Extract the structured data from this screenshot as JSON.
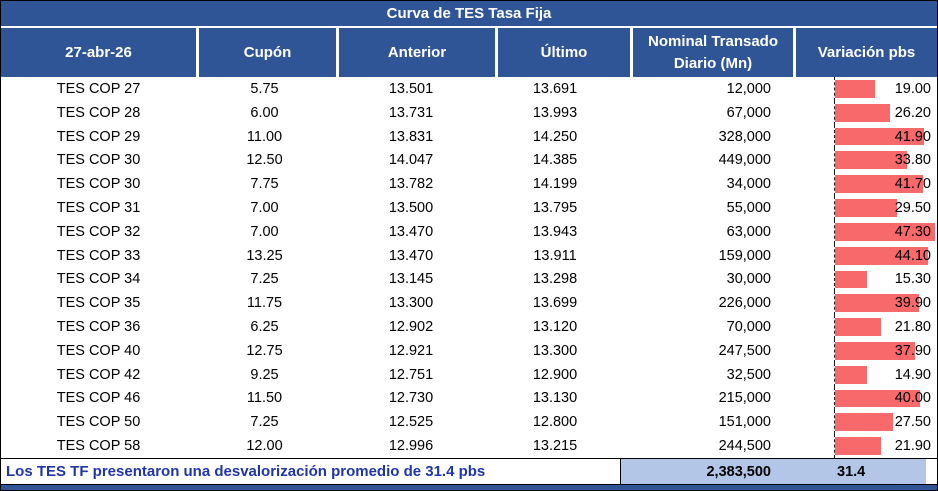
{
  "title": "Curva de TES Tasa Fija",
  "columns": {
    "date": "27-abr-26",
    "cupon": "Cupón",
    "anterior": "Anterior",
    "ultimo": "Último",
    "nominal_line1": "Nominal Transado",
    "nominal_line2": "Diario (Mn)",
    "variacion": "Variación pbs"
  },
  "chart_data": {
    "type": "table",
    "title": "Curva de TES Tasa Fija",
    "bar_column": "variacion",
    "bar_axis_max": 47.3,
    "rows": [
      {
        "name": "TES COP 27",
        "cupon": "5.75",
        "anterior": "13.501",
        "ultimo": "13.691",
        "nominal": "12,000",
        "variacion": "19.00"
      },
      {
        "name": "TES COP 28",
        "cupon": "6.00",
        "anterior": "13.731",
        "ultimo": "13.993",
        "nominal": "67,000",
        "variacion": "26.20"
      },
      {
        "name": "TES COP 29",
        "cupon": "11.00",
        "anterior": "13.831",
        "ultimo": "14.250",
        "nominal": "328,000",
        "variacion": "41.90"
      },
      {
        "name": "TES COP 30",
        "cupon": "12.50",
        "anterior": "14.047",
        "ultimo": "14.385",
        "nominal": "449,000",
        "variacion": "33.80"
      },
      {
        "name": "TES COP 30",
        "cupon": "7.75",
        "anterior": "13.782",
        "ultimo": "14.199",
        "nominal": "34,000",
        "variacion": "41.70"
      },
      {
        "name": "TES COP 31",
        "cupon": "7.00",
        "anterior": "13.500",
        "ultimo": "13.795",
        "nominal": "55,000",
        "variacion": "29.50"
      },
      {
        "name": "TES COP 32",
        "cupon": "7.00",
        "anterior": "13.470",
        "ultimo": "13.943",
        "nominal": "63,000",
        "variacion": "47.30"
      },
      {
        "name": "TES COP 33",
        "cupon": "13.25",
        "anterior": "13.470",
        "ultimo": "13.911",
        "nominal": "159,000",
        "variacion": "44.10"
      },
      {
        "name": "TES COP 34",
        "cupon": "7.25",
        "anterior": "13.145",
        "ultimo": "13.298",
        "nominal": "30,000",
        "variacion": "15.30"
      },
      {
        "name": "TES COP 35",
        "cupon": "11.75",
        "anterior": "13.300",
        "ultimo": "13.699",
        "nominal": "226,000",
        "variacion": "39.90"
      },
      {
        "name": "TES COP 36",
        "cupon": "6.25",
        "anterior": "12.902",
        "ultimo": "13.120",
        "nominal": "70,000",
        "variacion": "21.80"
      },
      {
        "name": "TES COP 40",
        "cupon": "12.75",
        "anterior": "12.921",
        "ultimo": "13.300",
        "nominal": "247,500",
        "variacion": "37.90"
      },
      {
        "name": "TES COP 42",
        "cupon": "9.25",
        "anterior": "12.751",
        "ultimo": "12.900",
        "nominal": "32,500",
        "variacion": "14.90"
      },
      {
        "name": "TES COP 46",
        "cupon": "11.50",
        "anterior": "12.730",
        "ultimo": "13.130",
        "nominal": "215,000",
        "variacion": "40.00"
      },
      {
        "name": "TES COP 50",
        "cupon": "7.25",
        "anterior": "12.525",
        "ultimo": "12.800",
        "nominal": "151,000",
        "variacion": "27.50"
      },
      {
        "name": "TES COP 58",
        "cupon": "12.00",
        "anterior": "12.996",
        "ultimo": "13.215",
        "nominal": "244,500",
        "variacion": "21.90"
      }
    ]
  },
  "footer": {
    "note": "Los TES TF presentaron una desvalorización promedio de 31.4 pbs",
    "nominal_total": "2,383,500",
    "variacion_avg": "31.4"
  },
  "colors": {
    "header_blue": "#2F5597",
    "bar_red": "#F8696B",
    "footer_light_blue": "#B4C6E7",
    "note_blue": "#1F35A8"
  }
}
